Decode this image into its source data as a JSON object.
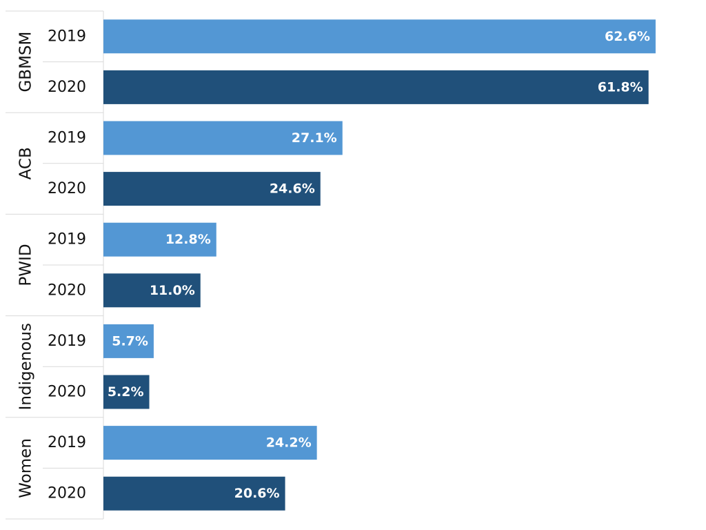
{
  "chart_data": {
    "type": "bar",
    "orientation": "horizontal",
    "title": "",
    "xlabel": "",
    "ylabel": "",
    "xlim": [
      0,
      68
    ],
    "grid": false,
    "legend": "none",
    "groups": [
      {
        "name": "GBMSM",
        "bars": [
          {
            "year": "2019",
            "value": 62.6,
            "label": "62.6%"
          },
          {
            "year": "2020",
            "value": 61.8,
            "label": "61.8%"
          }
        ]
      },
      {
        "name": "ACB",
        "bars": [
          {
            "year": "2019",
            "value": 27.1,
            "label": "27.1%"
          },
          {
            "year": "2020",
            "value": 24.6,
            "label": "24.6%"
          }
        ]
      },
      {
        "name": "PWID",
        "bars": [
          {
            "year": "2019",
            "value": 12.8,
            "label": "12.8%"
          },
          {
            "year": "2020",
            "value": 11.0,
            "label": "11.0%"
          }
        ]
      },
      {
        "name": "Indigenous",
        "bars": [
          {
            "year": "2019",
            "value": 5.7,
            "label": "5.7%"
          },
          {
            "year": "2020",
            "value": 5.2,
            "label": "5.2%"
          }
        ]
      },
      {
        "name": "Women",
        "bars": [
          {
            "year": "2019",
            "value": 24.2,
            "label": "24.2%"
          },
          {
            "year": "2020",
            "value": 20.6,
            "label": "20.6%"
          }
        ]
      }
    ],
    "colors": {
      "2019": "#5397d4",
      "2020": "#20507a"
    }
  }
}
